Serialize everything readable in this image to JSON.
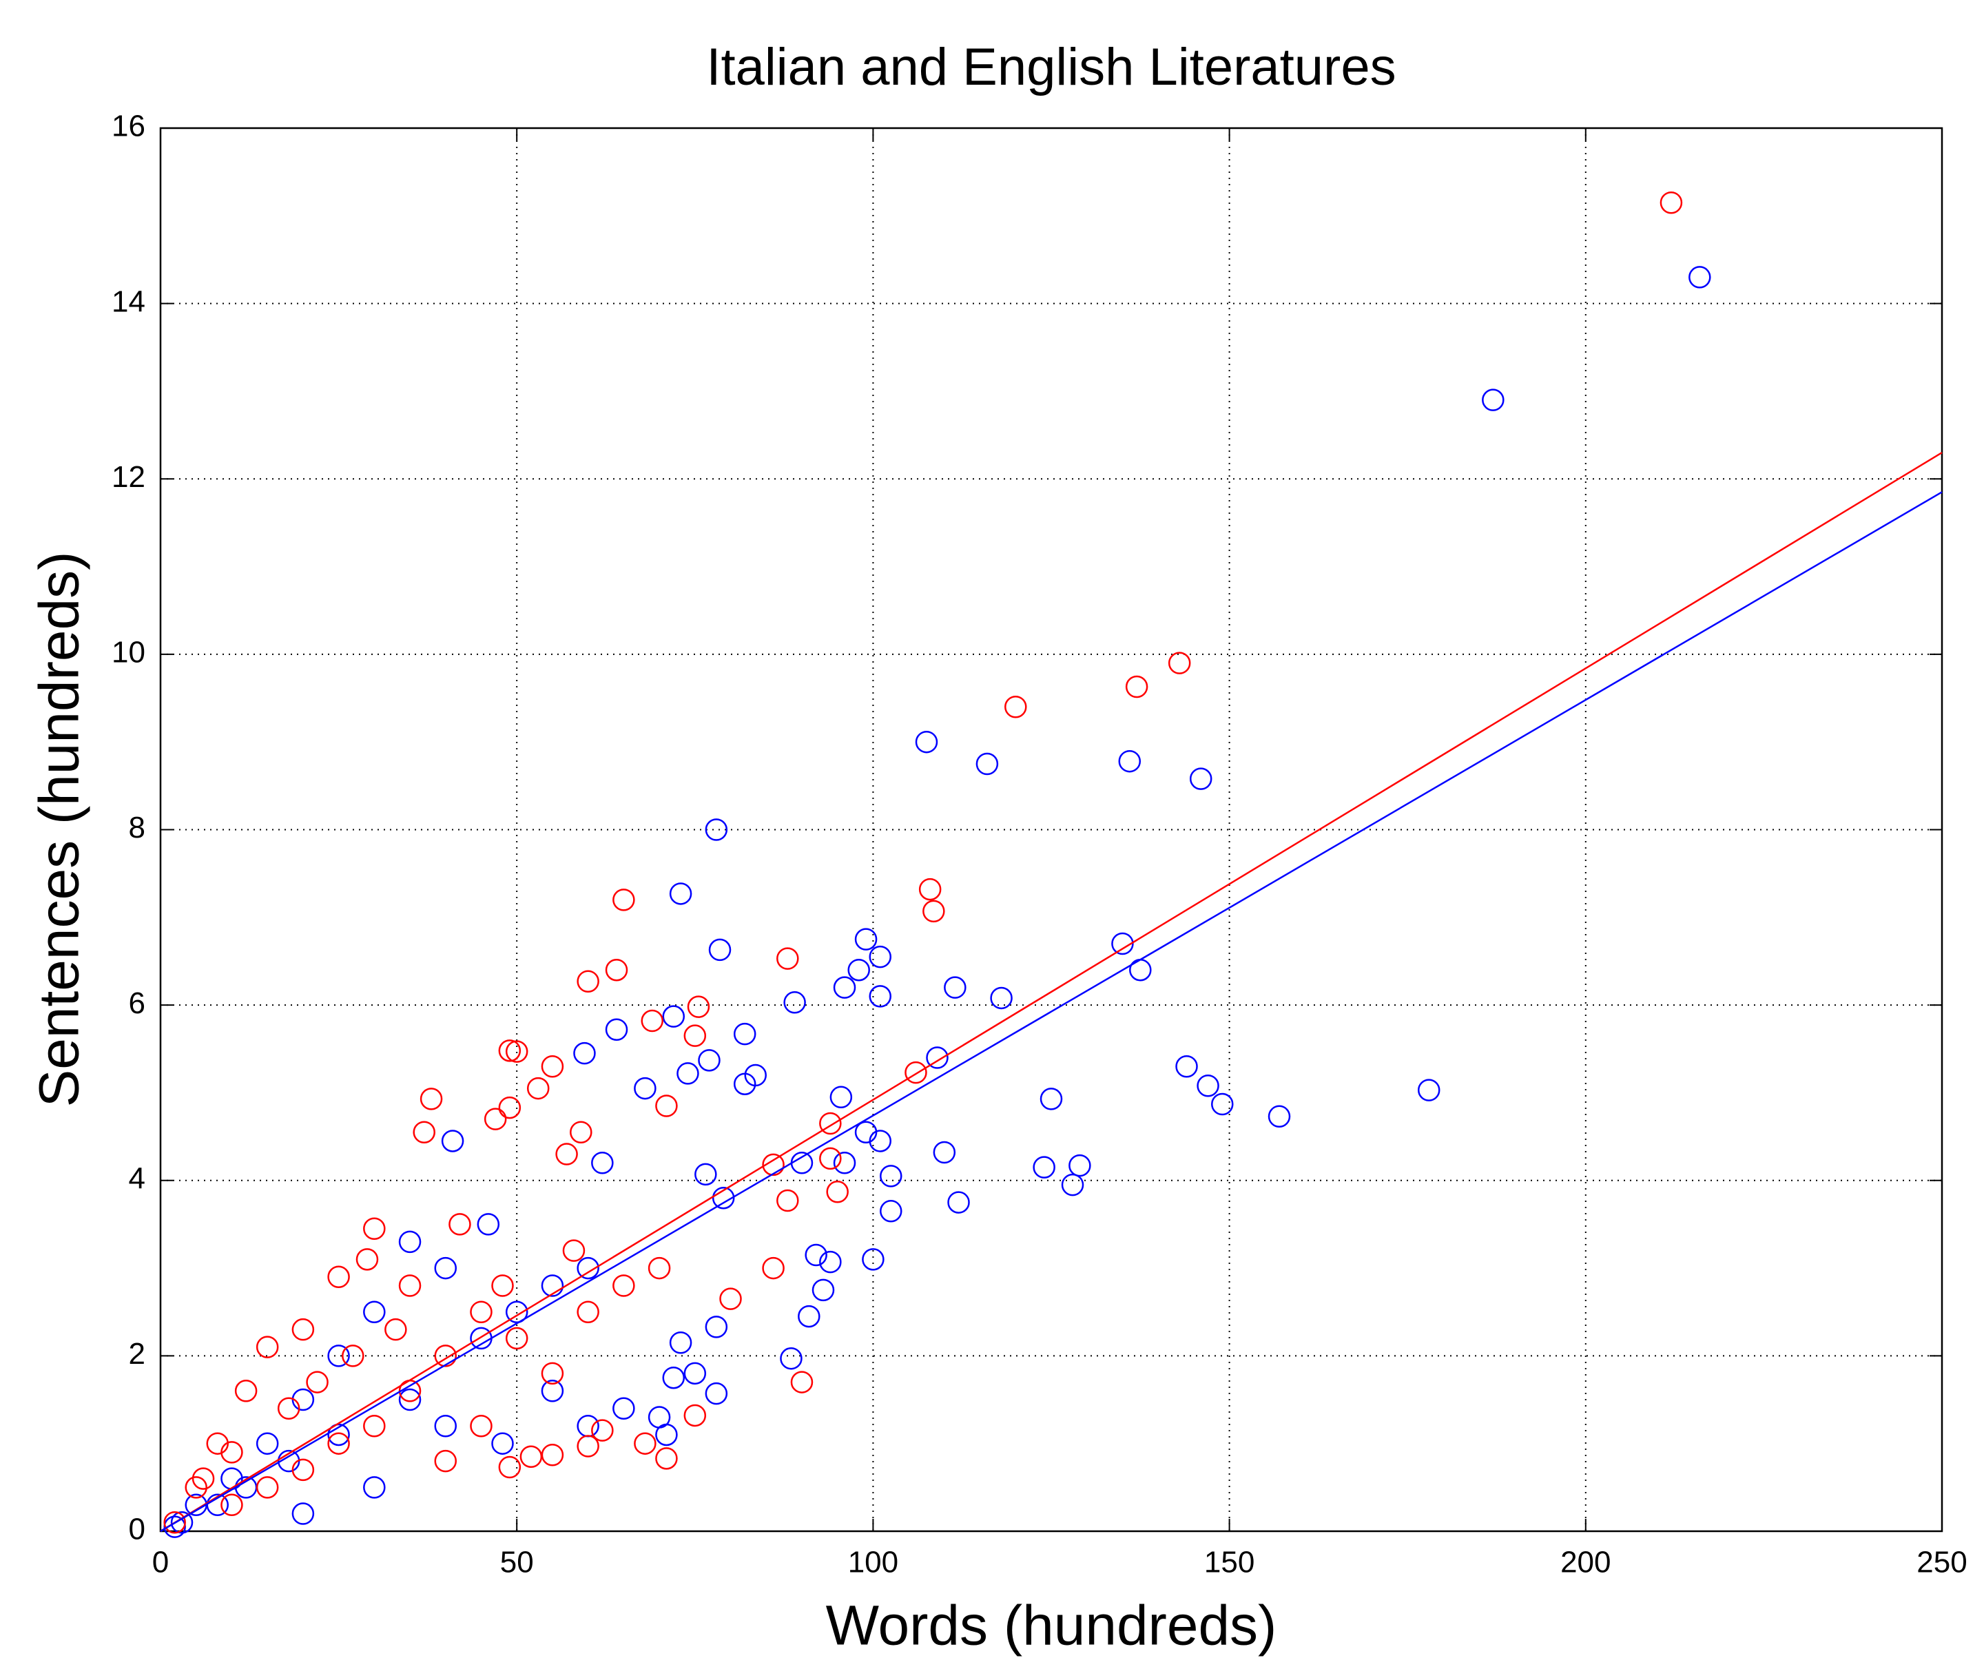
{
  "chart_data": {
    "type": "scatter",
    "title": "Italian and English Literatures",
    "x_label": "Words (hundreds)",
    "y_label": "Sentences (hundreds)",
    "xlim": [
      0,
      250
    ],
    "ylim": [
      0,
      16
    ],
    "xticks": [
      0,
      50,
      100,
      150,
      200,
      250
    ],
    "yticks": [
      0,
      2,
      4,
      6,
      8,
      10,
      12,
      14,
      16
    ],
    "grid": true,
    "series": [
      {
        "color": "#0000ff",
        "x": [
          216,
          187,
          107.5,
          116,
          136,
          146,
          78,
          73,
          78.5,
          99,
          101,
          98,
          96,
          101,
          111.5,
          118,
          135,
          137.5,
          109,
          89,
          144,
          147,
          149,
          157,
          178,
          125,
          124,
          129,
          128,
          110,
          112,
          102.5,
          102.5,
          100,
          99,
          101,
          96,
          95.5,
          90,
          88.5,
          91,
          93,
          92,
          94,
          82,
          82,
          83.5,
          72,
          74,
          77,
          68,
          64,
          59.5,
          76.5,
          79,
          78,
          78,
          75,
          72,
          73,
          70,
          71,
          65,
          60,
          55,
          48,
          41,
          46,
          40,
          35,
          30,
          25,
          20,
          15,
          10,
          5,
          2,
          30,
          35,
          45,
          50,
          55,
          60,
          62,
          40,
          25,
          18,
          12,
          8,
          3,
          20
        ],
        "values": [
          14.3,
          12.9,
          9.0,
          8.75,
          8.78,
          8.58,
          8.0,
          7.27,
          6.63,
          6.75,
          6.55,
          6.4,
          6.2,
          6.1,
          6.2,
          6.08,
          6.7,
          6.4,
          5.4,
          6.03,
          5.3,
          5.08,
          4.87,
          4.73,
          5.03,
          4.93,
          4.15,
          4.17,
          3.95,
          4.32,
          3.75,
          4.05,
          3.65,
          3.1,
          4.55,
          4.45,
          4.2,
          4.95,
          4.2,
          1.97,
          2.45,
          2.75,
          3.15,
          3.07,
          5.67,
          5.1,
          5.2,
          5.87,
          5.22,
          5.37,
          5.05,
          5.72,
          5.45,
          4.07,
          3.8,
          2.33,
          1.57,
          1.8,
          1.75,
          2.15,
          1.3,
          1.1,
          1.4,
          1.2,
          1.6,
          1.0,
          4.45,
          3.5,
          3.0,
          3.3,
          2.5,
          2.0,
          1.5,
          1.0,
          0.6,
          0.3,
          0.05,
          0.5,
          1.5,
          2.2,
          2.5,
          2.8,
          3.0,
          4.2,
          1.2,
          1.1,
          0.8,
          0.5,
          0.3,
          0.1,
          0.2
        ]
      },
      {
        "color": "#ff0000",
        "x": [
          212,
          143,
          137,
          120,
          108,
          108.5,
          65,
          88,
          60,
          64,
          75.5,
          69,
          75,
          49,
          50,
          55,
          53,
          38,
          37,
          47,
          49,
          59,
          57,
          71,
          94,
          106,
          94,
          95,
          86,
          88,
          86,
          90,
          71,
          68,
          62,
          49,
          52,
          55,
          60,
          75,
          80,
          30,
          29,
          25,
          20,
          15,
          12,
          8,
          5,
          2,
          40,
          45,
          50,
          35,
          30,
          25,
          20,
          15,
          10,
          40,
          45,
          55,
          60,
          65,
          70,
          35,
          42,
          27,
          18,
          22,
          33,
          48,
          58,
          10,
          6
        ],
        "values": [
          15.15,
          9.9,
          9.63,
          9.4,
          7.32,
          7.07,
          7.2,
          6.53,
          6.27,
          6.4,
          5.98,
          5.82,
          5.65,
          5.48,
          5.47,
          5.3,
          5.05,
          4.93,
          4.55,
          4.7,
          4.83,
          4.55,
          4.3,
          4.85,
          4.65,
          5.23,
          4.25,
          3.87,
          4.18,
          3.77,
          3.0,
          1.7,
          0.83,
          1.0,
          1.15,
          0.73,
          0.85,
          0.87,
          0.97,
          1.32,
          2.65,
          3.45,
          3.1,
          2.9,
          2.3,
          2.1,
          1.6,
          1.0,
          0.5,
          0.1,
          2.0,
          2.5,
          2.2,
          1.6,
          1.2,
          1.0,
          0.7,
          0.5,
          0.3,
          0.8,
          1.2,
          1.8,
          2.5,
          2.8,
          3.0,
          2.8,
          3.5,
          2.0,
          1.4,
          1.7,
          2.3,
          2.8,
          3.2,
          0.9,
          0.6
        ]
      }
    ],
    "fits": [
      {
        "color": "#ff0000",
        "x": [
          0,
          250
        ],
        "values": [
          0,
          12.3
        ]
      },
      {
        "color": "#0000ff",
        "x": [
          0,
          250
        ],
        "values": [
          0,
          11.85
        ]
      }
    ]
  }
}
